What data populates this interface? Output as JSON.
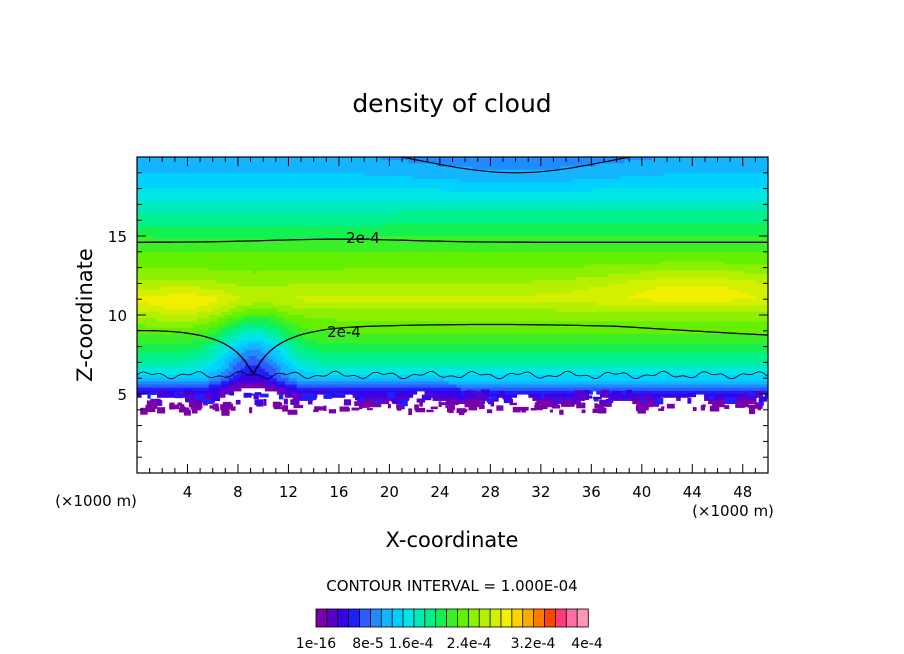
{
  "chart_data": {
    "type": "heatmap",
    "title": "density of cloud",
    "xlabel": "X-coordinate",
    "ylabel": "Z-coordinate",
    "x_unit_label": "(×1000 m)",
    "y_unit_label": "(×1000 m)",
    "xlim": [
      0,
      50
    ],
    "ylim": [
      0,
      20
    ],
    "x_ticks": [
      "4",
      "8",
      "12",
      "16",
      "20",
      "24",
      "28",
      "32",
      "36",
      "40",
      "44",
      "48"
    ],
    "y_ticks": [
      "5",
      "10",
      "15"
    ],
    "contour_interval_text": "CONTOUR INTERVAL = 1.000E-04",
    "contour_levels": [
      0.0001,
      0.0002,
      0.0003
    ],
    "contour_labels": [
      {
        "text": "2e-4",
        "x": 16.5,
        "z": 14.8
      },
      {
        "text": "2e-4",
        "x": 16.3,
        "z": 9.0
      }
    ],
    "colorbar": {
      "colors": [
        "#7a00a8",
        "#5a00c8",
        "#3a00e6",
        "#1e1eff",
        "#2d5cff",
        "#1e8cff",
        "#14b4ff",
        "#00d2ff",
        "#00e6e6",
        "#00ebb9",
        "#00f08c",
        "#14f050",
        "#3cf028",
        "#64f000",
        "#8cf000",
        "#b4f000",
        "#d2f000",
        "#f0f000",
        "#ffd200",
        "#ffaa00",
        "#ff7800",
        "#ff4600",
        "#ff3c78",
        "#ff6ea0",
        "#ff96b4"
      ],
      "tick_labels": [
        "1e-16",
        "8e-5",
        "1.6e-4",
        "2.4e-4",
        "3.2e-4",
        "4e-4"
      ]
    },
    "vertical_profile": [
      {
        "z": 4.5,
        "value": 1e-05
      },
      {
        "z": 5.0,
        "value": 4e-05
      },
      {
        "z": 5.5,
        "value": 8e-05
      },
      {
        "z": 6.0,
        "value": 0.00012
      },
      {
        "z": 7.0,
        "value": 0.00016
      },
      {
        "z": 8.5,
        "value": 0.0002
      },
      {
        "z": 10.0,
        "value": 0.00023
      },
      {
        "z": 11.0,
        "value": 0.00026
      },
      {
        "z": 12.5,
        "value": 0.00023
      },
      {
        "z": 14.5,
        "value": 0.0002
      },
      {
        "z": 16.5,
        "value": 0.00016
      },
      {
        "z": 18.5,
        "value": 0.00012
      },
      {
        "z": 20.0,
        "value": 0.0001
      }
    ]
  }
}
